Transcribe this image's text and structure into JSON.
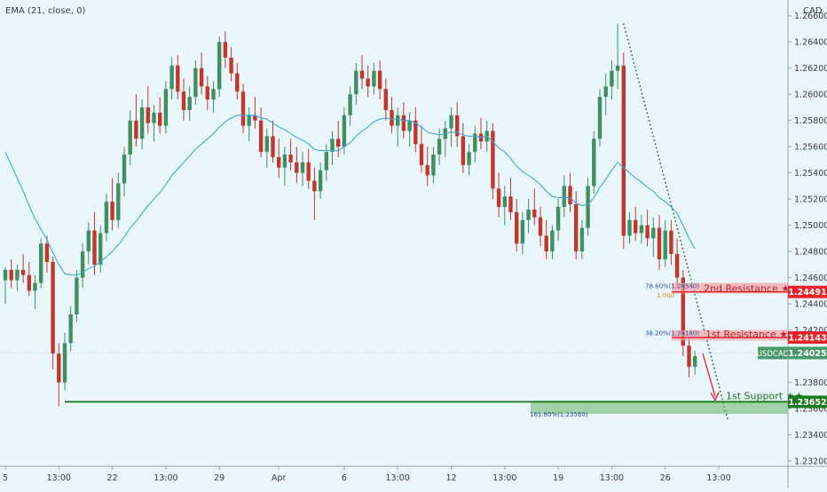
{
  "indicator_label": "EMA (21, close, 0)",
  "currency_label": "CAD",
  "chart_data": {
    "type": "candlestick",
    "symbol": "USDCAD",
    "title": "",
    "xlabel": "",
    "ylabel": "",
    "ylim": [
      1.2316,
      1.2672
    ],
    "y_ticks": [
      1.266,
      1.264,
      1.262,
      1.26,
      1.258,
      1.256,
      1.254,
      1.252,
      1.25,
      1.248,
      1.246,
      1.244,
      1.242,
      1.24,
      1.238,
      1.236,
      1.234,
      1.232
    ],
    "y_tick_labels": [
      "1.26600",
      "1.26400",
      "1.26200",
      "1.26000",
      "1.25800",
      "1.25600",
      "1.25400",
      "1.25200",
      "1.25000",
      "1.24800",
      "1.24600",
      "1.24400",
      "1.24200",
      "1.24000",
      "1.23800",
      "1.23600",
      "1.23400",
      "1.23200"
    ],
    "x_ticks": [
      {
        "label": "5",
        "bar": 0
      },
      {
        "label": "13:00",
        "bar": 9
      },
      {
        "label": "22",
        "bar": 18
      },
      {
        "label": "13:00",
        "bar": 27
      },
      {
        "label": "29",
        "bar": 36
      },
      {
        "label": "Apr",
        "bar": 46
      },
      {
        "label": "6",
        "bar": 57
      },
      {
        "label": "13:00",
        "bar": 66
      },
      {
        "label": "12",
        "bar": 75
      },
      {
        "label": "13:00",
        "bar": 84
      },
      {
        "label": "19",
        "bar": 93
      },
      {
        "label": "13:00",
        "bar": 102
      },
      {
        "label": "26",
        "bar": 111
      },
      {
        "label": "13:00",
        "bar": 120
      }
    ],
    "candles": [
      [
        1.2458,
        1.2468,
        1.244,
        1.2466
      ],
      [
        1.2466,
        1.2474,
        1.2452,
        1.2458
      ],
      [
        1.2458,
        1.247,
        1.245,
        1.2466
      ],
      [
        1.2466,
        1.2478,
        1.2456,
        1.2462
      ],
      [
        1.2462,
        1.2472,
        1.2446,
        1.245
      ],
      [
        1.245,
        1.2462,
        1.2436,
        1.2456
      ],
      [
        1.2456,
        1.249,
        1.2452,
        1.2486
      ],
      [
        1.2486,
        1.2492,
        1.2464,
        1.2472
      ],
      [
        1.2472,
        1.2476,
        1.239,
        1.2402
      ],
      [
        1.2402,
        1.241,
        1.2362,
        1.238
      ],
      [
        1.238,
        1.2418,
        1.2374,
        1.241
      ],
      [
        1.241,
        1.2438,
        1.2404,
        1.2432
      ],
      [
        1.2432,
        1.2466,
        1.2426,
        1.246
      ],
      [
        1.246,
        1.2486,
        1.2452,
        1.248
      ],
      [
        1.248,
        1.2502,
        1.247,
        1.2496
      ],
      [
        1.2496,
        1.251,
        1.2462,
        1.247
      ],
      [
        1.247,
        1.25,
        1.2464,
        1.2494
      ],
      [
        1.2494,
        1.2524,
        1.2488,
        1.2518
      ],
      [
        1.2518,
        1.2536,
        1.2496,
        1.2504
      ],
      [
        1.2504,
        1.254,
        1.2498,
        1.2532
      ],
      [
        1.2532,
        1.256,
        1.2522,
        1.2554
      ],
      [
        1.2554,
        1.2588,
        1.2546,
        1.258
      ],
      [
        1.258,
        1.26,
        1.256,
        1.2566
      ],
      [
        1.2566,
        1.2596,
        1.2558,
        1.259
      ],
      [
        1.259,
        1.2606,
        1.257,
        1.2578
      ],
      [
        1.2578,
        1.2592,
        1.2564,
        1.2586
      ],
      [
        1.2586,
        1.2598,
        1.257,
        1.2576
      ],
      [
        1.2576,
        1.261,
        1.257,
        1.2604
      ],
      [
        1.2604,
        1.2628,
        1.2596,
        1.2622
      ],
      [
        1.2622,
        1.263,
        1.2596,
        1.2602
      ],
      [
        1.2602,
        1.2612,
        1.258,
        1.2588
      ],
      [
        1.2588,
        1.2606,
        1.258,
        1.2598
      ],
      [
        1.2598,
        1.2626,
        1.2592,
        1.262
      ],
      [
        1.262,
        1.2632,
        1.26,
        1.2606
      ],
      [
        1.2606,
        1.2614,
        1.2588,
        1.2596
      ],
      [
        1.2596,
        1.261,
        1.2586,
        1.2604
      ],
      [
        1.2604,
        1.2644,
        1.2598,
        1.264
      ],
      [
        1.264,
        1.2648,
        1.262,
        1.2628
      ],
      [
        1.2628,
        1.2636,
        1.261,
        1.2616
      ],
      [
        1.2616,
        1.2624,
        1.2596,
        1.2602
      ],
      [
        1.2602,
        1.2608,
        1.257,
        1.2576
      ],
      [
        1.2576,
        1.259,
        1.2564,
        1.2584
      ],
      [
        1.2584,
        1.2598,
        1.2574,
        1.258
      ],
      [
        1.258,
        1.259,
        1.2552,
        1.2556
      ],
      [
        1.2556,
        1.2574,
        1.2544,
        1.2568
      ],
      [
        1.2568,
        1.258,
        1.2548,
        1.2552
      ],
      [
        1.2552,
        1.2566,
        1.2536,
        1.2544
      ],
      [
        1.2544,
        1.256,
        1.253,
        1.2554
      ],
      [
        1.2554,
        1.2566,
        1.2542,
        1.2548
      ],
      [
        1.2548,
        1.256,
        1.2532,
        1.254
      ],
      [
        1.254,
        1.2556,
        1.253,
        1.2548
      ],
      [
        1.2548,
        1.2558,
        1.2528,
        1.2534
      ],
      [
        1.2534,
        1.2544,
        1.2504,
        1.2526
      ],
      [
        1.2526,
        1.2548,
        1.252,
        1.2542
      ],
      [
        1.2542,
        1.2562,
        1.2534,
        1.2556
      ],
      [
        1.2556,
        1.2572,
        1.2546,
        1.2566
      ],
      [
        1.2566,
        1.258,
        1.2552,
        1.256
      ],
      [
        1.256,
        1.259,
        1.2554,
        1.2584
      ],
      [
        1.2584,
        1.2606,
        1.2576,
        1.26
      ],
      [
        1.26,
        1.2624,
        1.2592,
        1.2618
      ],
      [
        1.2618,
        1.263,
        1.2604,
        1.2612
      ],
      [
        1.2612,
        1.2622,
        1.2598,
        1.2606
      ],
      [
        1.2606,
        1.2624,
        1.26,
        1.2618
      ],
      [
        1.2618,
        1.2626,
        1.2596,
        1.2604
      ],
      [
        1.2604,
        1.2612,
        1.258,
        1.2588
      ],
      [
        1.2588,
        1.2598,
        1.257,
        1.2576
      ],
      [
        1.2576,
        1.259,
        1.256,
        1.2584
      ],
      [
        1.2584,
        1.2594,
        1.2566,
        1.2572
      ],
      [
        1.2572,
        1.2586,
        1.256,
        1.258
      ],
      [
        1.258,
        1.259,
        1.2556,
        1.2562
      ],
      [
        1.2562,
        1.2576,
        1.254,
        1.2546
      ],
      [
        1.2546,
        1.256,
        1.253,
        1.2538
      ],
      [
        1.2538,
        1.256,
        1.2532,
        1.2554
      ],
      [
        1.2554,
        1.2574,
        1.2546,
        1.2566
      ],
      [
        1.2566,
        1.258,
        1.2552,
        1.2574
      ],
      [
        1.2574,
        1.259,
        1.256,
        1.2584
      ],
      [
        1.2584,
        1.2594,
        1.256,
        1.2568
      ],
      [
        1.2568,
        1.2578,
        1.254,
        1.2546
      ],
      [
        1.2546,
        1.2562,
        1.2538,
        1.2556
      ],
      [
        1.2556,
        1.2576,
        1.2548,
        1.257
      ],
      [
        1.257,
        1.2582,
        1.2558,
        1.2564
      ],
      [
        1.2564,
        1.258,
        1.2556,
        1.2572
      ],
      [
        1.2572,
        1.2578,
        1.252,
        1.2528
      ],
      [
        1.2528,
        1.254,
        1.2506,
        1.2514
      ],
      [
        1.2514,
        1.253,
        1.25,
        1.2522
      ],
      [
        1.2522,
        1.2536,
        1.2504,
        1.251
      ],
      [
        1.251,
        1.252,
        1.248,
        1.2486
      ],
      [
        1.2486,
        1.251,
        1.2478,
        1.2504
      ],
      [
        1.2504,
        1.252,
        1.2494,
        1.2512
      ],
      [
        1.2512,
        1.2528,
        1.25,
        1.2506
      ],
      [
        1.2506,
        1.2514,
        1.2484,
        1.2492
      ],
      [
        1.2492,
        1.2504,
        1.2474,
        1.248
      ],
      [
        1.248,
        1.25,
        1.2474,
        1.2496
      ],
      [
        1.2496,
        1.252,
        1.2488,
        1.2514
      ],
      [
        1.2514,
        1.2538,
        1.2506,
        1.253
      ],
      [
        1.253,
        1.254,
        1.251,
        1.2516
      ],
      [
        1.2516,
        1.2526,
        1.2474,
        1.248
      ],
      [
        1.248,
        1.2504,
        1.2474,
        1.2498
      ],
      [
        1.2498,
        1.2536,
        1.2492,
        1.253
      ],
      [
        1.253,
        1.2572,
        1.2524,
        1.2566
      ],
      [
        1.2566,
        1.2604,
        1.256,
        1.2598
      ],
      [
        1.2598,
        1.2616,
        1.2584,
        1.2606
      ],
      [
        1.2606,
        1.2626,
        1.2596,
        1.2618
      ],
      [
        1.2618,
        1.2654,
        1.2604,
        1.2622
      ],
      [
        1.2622,
        1.2632,
        1.2482,
        1.2492
      ],
      [
        1.2492,
        1.251,
        1.2486,
        1.2504
      ],
      [
        1.2504,
        1.2514,
        1.2488,
        1.2494
      ],
      [
        1.2494,
        1.2508,
        1.2486,
        1.25
      ],
      [
        1.25,
        1.2512,
        1.2484,
        1.249
      ],
      [
        1.249,
        1.2506,
        1.2476,
        1.2498
      ],
      [
        1.2498,
        1.2508,
        1.2466,
        1.2474
      ],
      [
        1.2474,
        1.2504,
        1.2468,
        1.2496
      ],
      [
        1.2496,
        1.2504,
        1.247,
        1.2478
      ],
      [
        1.2478,
        1.249,
        1.2452,
        1.246
      ],
      [
        1.246,
        1.2466,
        1.24,
        1.2408
      ],
      [
        1.2408,
        1.2414,
        1.2384,
        1.2392
      ],
      [
        1.2392,
        1.2404,
        1.2386,
        1.24
      ]
    ],
    "ema": {
      "name": "EMA (21, close, 0)",
      "color": "#3fa8d8",
      "values": [
        1.2556,
        1.2546,
        1.2536,
        1.2526,
        1.2515,
        1.2505,
        1.2497,
        1.2489,
        1.2479,
        1.247,
        1.2463,
        1.2462,
        1.2462,
        1.2464,
        1.2467,
        1.2469,
        1.2472,
        1.2476,
        1.248,
        1.2485,
        1.2491,
        1.2498,
        1.2503,
        1.2509,
        1.2515,
        1.252,
        1.2525,
        1.2531,
        1.2538,
        1.2543,
        1.2548,
        1.2553,
        1.2558,
        1.2562,
        1.2566,
        1.257,
        1.2575,
        1.2579,
        1.2582,
        1.2584,
        1.2584,
        1.2584,
        1.2584,
        1.2582,
        1.2581,
        1.2578,
        1.2575,
        1.2573,
        1.257,
        1.2567,
        1.2565,
        1.2562,
        1.2558,
        1.2557,
        1.2557,
        1.2557,
        1.2557,
        1.256,
        1.2563,
        1.2568,
        1.2572,
        1.2575,
        1.2579,
        1.2581,
        1.2582,
        1.2581,
        1.2581,
        1.258,
        1.258,
        1.2578,
        1.2575,
        1.2571,
        1.257,
        1.2569,
        1.257,
        1.2571,
        1.2571,
        1.2569,
        1.2568,
        1.2568,
        1.2567,
        1.2568,
        1.2564,
        1.2559,
        1.2556,
        1.2551,
        1.2545,
        1.2541,
        1.2538,
        1.2535,
        1.2531,
        1.2526,
        1.2522,
        1.2521,
        1.2521,
        1.2521,
        1.2517,
        1.2515,
        1.2516,
        1.2521,
        1.2529,
        1.2535,
        1.2542,
        1.2548,
        1.2544,
        1.254,
        1.2536,
        1.2533,
        1.2529,
        1.2526,
        1.2521,
        1.2518,
        1.2514,
        1.2509,
        1.25,
        1.249,
        1.2482
      ]
    },
    "levels": [
      {
        "name": "2nd Resistance ★★★",
        "price": 1.24491,
        "price_label": "1.24491",
        "color": "#e8222a",
        "zone": [
          1.2448,
          1.2456
        ]
      },
      {
        "name": "1st Resistance ★★★",
        "price": 1.24143,
        "price_label": "1.24143",
        "color": "#e8222a",
        "zone": [
          1.2412,
          1.242
        ]
      },
      {
        "name": "1st Support ★★",
        "price": 1.23652,
        "price_label": "1.23652",
        "color": "#1f7a1f",
        "zone": [
          1.2356,
          1.2366
        ]
      }
    ],
    "fib_labels": [
      {
        "text": "78.60%(1.24540)",
        "price": 1.2454
      },
      {
        "text": "1.000",
        "price": 1.2447
      },
      {
        "text": "38.20%(1.24180)",
        "price": 1.2418
      },
      {
        "text": "161.80%(1.23560)",
        "price": 1.2356
      }
    ],
    "current_price": {
      "label": "USDCAD",
      "price": 1.24025,
      "price_label": "1.24025"
    }
  }
}
